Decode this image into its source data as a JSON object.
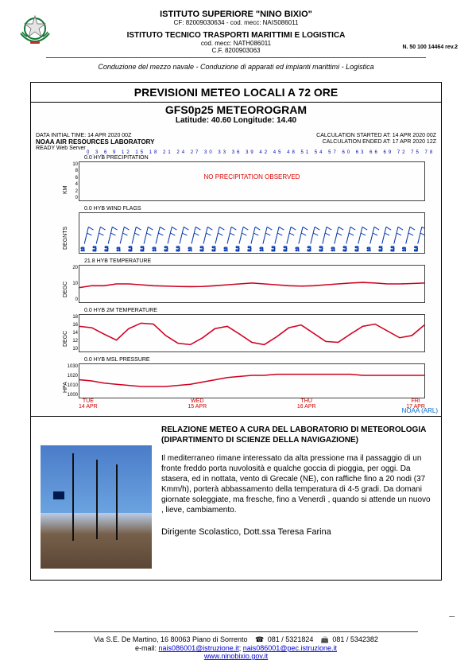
{
  "header": {
    "school": "ISTITUTO  SUPERIORE \"NINO BIXIO\"",
    "cf": "CF: 82009030634 - cod. mecc: NAIS086011",
    "inst": "ISTITUTO TECNICO   TRASPORTI MARITTIMI E   LOGISTICA",
    "mecc": "cod. mecc: NATH086011",
    "cf2": "C.F. 8200903063",
    "rev": "N. 50 100 14464 rev.2",
    "tagline": "Conduzione del mezzo navale - Conduzione di apparati ed impianti marittimi - Logistica"
  },
  "meteo": {
    "title": "PREVISIONI METEO LOCALI A 72 ORE",
    "sub1": "GFS0p25 METEOROGRAM",
    "sub2": "Latitude: 40.60 Longitude:  14.40",
    "init": "DATA INITIAL TIME: 14 APR 2020 00Z",
    "lab": "NOAA AIR RESOURCES LABORATORY",
    "srv": "READY Web Server",
    "calc1": "CALCULATION STARTED AT: 14 APR 2020 00Z",
    "calc2": "CALCULATION ENDED AT: 17 APR 2020 12Z",
    "hours": "0   3   6   9  12  15  18  21  24  27  30  33  36  39  42  45  48  51  54  57  60  63  66  69  72  75  78  81  84",
    "panels": {
      "precip": {
        "label": "0.0 HYB PRECIPITATION",
        "no_precip": "NO PRECIPITATION OBSERVED",
        "yvals": [
          "10",
          "8",
          "6",
          "4",
          "2",
          "0"
        ],
        "ylab": "KM"
      },
      "wind": {
        "label": "0.0 HYB WIND FLAGS",
        "ylab": "DEGNTS"
      },
      "t1": {
        "label": "21.8 HYB TEMPERATURE",
        "yvals": [
          "20",
          "10",
          "0"
        ],
        "ylab": "DEGC",
        "line_color": "#d00020",
        "points": [
          8,
          9,
          9,
          10,
          10,
          9.5,
          9,
          8.8,
          8.6,
          8.5,
          8.6,
          9,
          9.5,
          10,
          10.5,
          10,
          9.5,
          9,
          8.8,
          9,
          9.5,
          10,
          10.5,
          10.8,
          10.5,
          10,
          10,
          10.2,
          10.5
        ]
      },
      "t2": {
        "label": "0.0 HYB 2M TEMPERATURE",
        "yvals": [
          "18",
          "16",
          "14",
          "12",
          "10"
        ],
        "ylab": "DEGC",
        "line_color": "#d00020",
        "points": [
          15.5,
          15.2,
          13.8,
          12.5,
          15.0,
          16.2,
          16.0,
          13.5,
          11.8,
          11.5,
          13.0,
          15.0,
          15.5,
          13.8,
          12.0,
          11.5,
          13.2,
          15.2,
          15.8,
          14.0,
          12.2,
          12.0,
          13.8,
          15.5,
          16.0,
          14.5,
          13.0,
          13.5,
          15.8
        ]
      },
      "press": {
        "label": "0.0 HYB MSL PRESSURE",
        "yvals": [
          "1030",
          "1020",
          "1010",
          "1000"
        ],
        "ylab": "HPA",
        "line_color": "#d00020",
        "points": [
          1016,
          1015,
          1013,
          1012,
          1011,
          1010,
          1010,
          1010,
          1011,
          1012,
          1014,
          1016,
          1018,
          1019,
          1020,
          1020,
          1021,
          1021,
          1021,
          1021,
          1021,
          1021,
          1021,
          1020,
          1020,
          1020,
          1020,
          1020,
          1020
        ]
      }
    },
    "xaxis": [
      {
        "d": "TUE",
        "dt": "14 APR"
      },
      {
        "d": "WED",
        "dt": "15 APR"
      },
      {
        "d": "THU",
        "dt": "16 APR"
      },
      {
        "d": "FRI",
        "dt": "17 APR"
      }
    ],
    "source": "NOAA (ARL)"
  },
  "report": {
    "title": "RELAZIONE METEO A CURA DEL LABORATORIO DI METEOROLOGIA (DIPARTIMENTO DI SCIENZE DELLA NAVIGAZIONE)",
    "body": "Il mediterraneo rimane interessato da alta pressione ma il passaggio di un fronte freddo porta nuvolosità e qualche goccia di pioggia, per oggi. Da stasera, ed in nottata, vento di Grecale (NE), con raffiche fino a 20 nodi (37 Kmm/h), porterà abbassamento della temperatura di 4-5 gradi. Da domani giornate soleggiate, ma fresche, fino a Venerdì , quando si attende un nuovo , lieve, cambiamento.",
    "sign": "Dirigente Scolastico, Dott.ssa Teresa Farina"
  },
  "footer": {
    "addr": "Via S.E.  De Martino, 16   80063   Piano di Sorrento",
    "tel": "081 / 5321824",
    "fax": "081 / 5342382",
    "email_lbl": "e-mail:",
    "email1": "nais086001@istruzione.it",
    "email2": "nais086001@pec.istruzione.it",
    "web": "www.ninobixio.gov.it"
  },
  "colors": {
    "red": "#d00020",
    "blue": "#0033aa",
    "link": "#0000cc",
    "border": "#000000",
    "text": "#000000"
  }
}
